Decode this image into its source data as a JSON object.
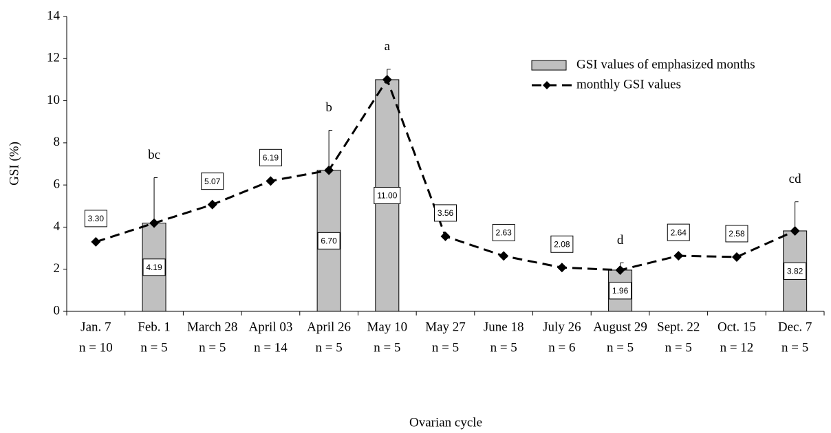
{
  "chart_data": {
    "type": "bar+line",
    "y_label": "GSI (%)",
    "x_label": "Ovarian cycle",
    "categories": [
      "Jan. 7",
      "Feb. 1",
      "March 28",
      "April 03",
      "April 26",
      "May 10",
      "May 27",
      "June 18",
      "July 26",
      "August 29",
      "Sept. 22",
      "Oct. 15",
      "Dec. 7"
    ],
    "sample_sizes": [
      "n = 10",
      "n = 5",
      "n = 5",
      "n = 14",
      "n = 5",
      "n = 5",
      "n = 5",
      "n = 5",
      "n = 6",
      "n = 5",
      "n = 5",
      "n = 12",
      "n = 5"
    ],
    "series": [
      {
        "name": "GSI values of emphasized months",
        "type": "bar",
        "color": "#c0c0c0",
        "values": [
          null,
          4.19,
          null,
          null,
          6.7,
          11.0,
          null,
          null,
          null,
          1.96,
          null,
          null,
          3.82
        ],
        "errors": [
          null,
          2.16,
          null,
          null,
          1.9,
          0.5,
          null,
          null,
          null,
          0.34,
          null,
          null,
          1.38
        ],
        "annotations": [
          null,
          "bc",
          null,
          null,
          "b",
          "a",
          null,
          null,
          null,
          "d",
          null,
          null,
          "cd"
        ]
      },
      {
        "name": "monthly GSI values",
        "type": "line",
        "color": "#000000",
        "values": [
          3.3,
          4.19,
          5.07,
          6.19,
          6.7,
          11.0,
          3.56,
          2.63,
          2.08,
          1.96,
          2.64,
          2.58,
          3.82
        ],
        "value_labels": [
          "3.30",
          "4.19",
          "5.07",
          "6.19",
          "6.70",
          "11.00",
          "3.56",
          "2.63",
          "2.08",
          "1.96",
          "2.64",
          "2.58",
          "3.82"
        ]
      }
    ],
    "ylim": [
      0,
      14
    ],
    "yticks": [
      0,
      2,
      4,
      6,
      8,
      10,
      12,
      14
    ],
    "legend": "upper right"
  }
}
